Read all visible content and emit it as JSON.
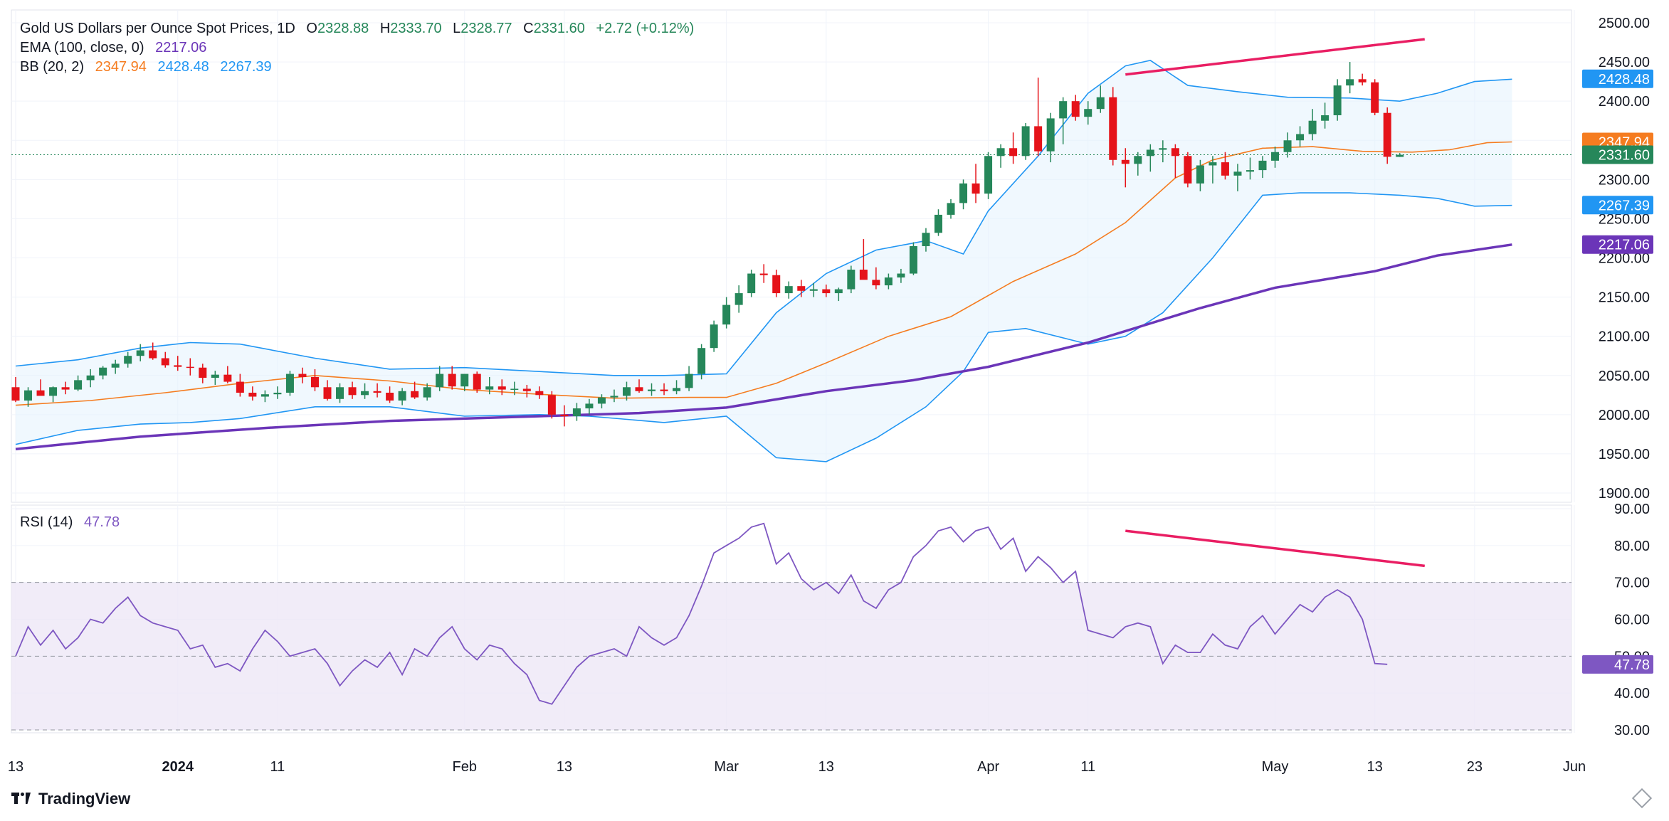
{
  "legend": {
    "title": "Gold US Dollars per Ounce Spot Prices, 1D",
    "open_label": "O",
    "open": "2328.88",
    "high_label": "H",
    "high": "2333.70",
    "low_label": "L",
    "low": "2328.77",
    "close_label": "C",
    "close": "2331.60",
    "change": "+2.72 (+0.12%)",
    "ema_label": "EMA (100, close, 0)",
    "ema_value": "2217.06",
    "bb_label": "BB (20, 2)",
    "bb_mid": "2347.94",
    "bb_upper": "2428.48",
    "bb_lower": "2267.39",
    "rsi_label": "RSI (14)",
    "rsi_value": "47.78"
  },
  "branding": {
    "logo_text": "TradingView"
  },
  "colors": {
    "up": "#26875a",
    "down": "#e5131a",
    "ema": "#6b35b8",
    "bb_basis": "#f57c20",
    "bb_band": "#2196f3",
    "bb_fill": "#e3f2fd",
    "rsi_line": "#7e57c2",
    "rsi_fill": "#ede7f6",
    "trendline": "#e91e63",
    "text": "#131722",
    "grid": "#f0f3fa"
  },
  "chart_data": [
    {
      "type": "candlestick",
      "title": "Gold US Dollars per Ounce Spot Prices, 1D",
      "ylim": [
        1900,
        2500
      ],
      "y_ticks": [
        1900,
        1950,
        2000,
        2050,
        2100,
        2150,
        2200,
        2250,
        2300,
        2350,
        2400,
        2450,
        2500
      ],
      "x_ticks": [
        {
          "label": "13",
          "i": 0
        },
        {
          "label": "2024",
          "i": 13,
          "bold": true
        },
        {
          "label": "11",
          "i": 21
        },
        {
          "label": "Feb",
          "i": 36
        },
        {
          "label": "13",
          "i": 44
        },
        {
          "label": "Mar",
          "i": 57
        },
        {
          "label": "13",
          "i": 65
        },
        {
          "label": "Apr",
          "i": 78
        },
        {
          "label": "11",
          "i": 86
        },
        {
          "label": "May",
          "i": 101
        },
        {
          "label": "13",
          "i": 109
        },
        {
          "label": "23",
          "i": 117
        },
        {
          "label": "Jun",
          "i": 125
        }
      ],
      "ohlc": [
        [
          2035,
          2048,
          2016,
          2018
        ],
        [
          2018,
          2035,
          2010,
          2031
        ],
        [
          2031,
          2045,
          2026,
          2024
        ],
        [
          2024,
          2036,
          2016,
          2035
        ],
        [
          2035,
          2042,
          2026,
          2032
        ],
        [
          2032,
          2050,
          2030,
          2044
        ],
        [
          2044,
          2058,
          2035,
          2050
        ],
        [
          2050,
          2062,
          2045,
          2060
        ],
        [
          2060,
          2070,
          2052,
          2065
        ],
        [
          2065,
          2080,
          2060,
          2075
        ],
        [
          2075,
          2090,
          2068,
          2082
        ],
        [
          2082,
          2092,
          2070,
          2072
        ],
        [
          2072,
          2080,
          2060,
          2063
        ],
        [
          2063,
          2075,
          2056,
          2061
        ],
        [
          2061,
          2072,
          2050,
          2060
        ],
        [
          2060,
          2065,
          2040,
          2047
        ],
        [
          2047,
          2056,
          2038,
          2051
        ],
        [
          2051,
          2062,
          2040,
          2042
        ],
        [
          2042,
          2052,
          2023,
          2028
        ],
        [
          2028,
          2036,
          2018,
          2023
        ],
        [
          2023,
          2031,
          2016,
          2026
        ],
        [
          2026,
          2036,
          2020,
          2028
        ],
        [
          2028,
          2056,
          2024,
          2052
        ],
        [
          2052,
          2060,
          2040,
          2048
        ],
        [
          2048,
          2058,
          2030,
          2035
        ],
        [
          2035,
          2044,
          2018,
          2020
        ],
        [
          2020,
          2040,
          2015,
          2035
        ],
        [
          2035,
          2042,
          2020,
          2025
        ],
        [
          2025,
          2040,
          2020,
          2030
        ],
        [
          2030,
          2040,
          2022,
          2028
        ],
        [
          2028,
          2036,
          2015,
          2018
        ],
        [
          2018,
          2034,
          2012,
          2030
        ],
        [
          2030,
          2042,
          2020,
          2022
        ],
        [
          2022,
          2040,
          2018,
          2035
        ],
        [
          2035,
          2062,
          2030,
          2052
        ],
        [
          2052,
          2062,
          2032,
          2036
        ],
        [
          2036,
          2052,
          2030,
          2052
        ],
        [
          2052,
          2055,
          2028,
          2032
        ],
        [
          2032,
          2048,
          2026,
          2036
        ],
        [
          2036,
          2045,
          2025,
          2032
        ],
        [
          2032,
          2042,
          2025,
          2033
        ],
        [
          2033,
          2038,
          2022,
          2030
        ],
        [
          2030,
          2036,
          2020,
          2025
        ],
        [
          2025,
          2030,
          1995,
          2000
        ],
        [
          2000,
          2012,
          1985,
          1998
        ],
        [
          1998,
          2015,
          1992,
          2008
        ],
        [
          2008,
          2020,
          2000,
          2014
        ],
        [
          2014,
          2026,
          2008,
          2022
        ],
        [
          2022,
          2032,
          2016,
          2024
        ],
        [
          2024,
          2042,
          2018,
          2035
        ],
        [
          2035,
          2045,
          2028,
          2030
        ],
        [
          2030,
          2040,
          2024,
          2032
        ],
        [
          2032,
          2040,
          2025,
          2030
        ],
        [
          2030,
          2044,
          2026,
          2034
        ],
        [
          2034,
          2062,
          2030,
          2052
        ],
        [
          2052,
          2090,
          2045,
          2085
        ],
        [
          2085,
          2120,
          2080,
          2115
        ],
        [
          2115,
          2150,
          2110,
          2140
        ],
        [
          2140,
          2165,
          2130,
          2155
        ],
        [
          2155,
          2185,
          2150,
          2180
        ],
        [
          2180,
          2192,
          2168,
          2178
        ],
        [
          2178,
          2185,
          2150,
          2155
        ],
        [
          2155,
          2170,
          2148,
          2164
        ],
        [
          2164,
          2172,
          2150,
          2158
        ],
        [
          2158,
          2168,
          2150,
          2160
        ],
        [
          2160,
          2166,
          2150,
          2155
        ],
        [
          2155,
          2162,
          2145,
          2160
        ],
        [
          2160,
          2190,
          2155,
          2185
        ],
        [
          2185,
          2224,
          2175,
          2172
        ],
        [
          2172,
          2188,
          2160,
          2165
        ],
        [
          2165,
          2180,
          2160,
          2175
        ],
        [
          2175,
          2186,
          2168,
          2180
        ],
        [
          2180,
          2220,
          2178,
          2215
        ],
        [
          2215,
          2238,
          2208,
          2232
        ],
        [
          2232,
          2262,
          2228,
          2255
        ],
        [
          2255,
          2275,
          2250,
          2270
        ],
        [
          2270,
          2300,
          2262,
          2295
        ],
        [
          2295,
          2320,
          2270,
          2282
        ],
        [
          2282,
          2335,
          2275,
          2330
        ],
        [
          2330,
          2345,
          2315,
          2340
        ],
        [
          2340,
          2360,
          2320,
          2330
        ],
        [
          2330,
          2372,
          2325,
          2368
        ],
        [
          2368,
          2430,
          2330,
          2336
        ],
        [
          2336,
          2385,
          2322,
          2378
        ],
        [
          2378,
          2405,
          2345,
          2400
        ],
        [
          2400,
          2408,
          2375,
          2380
        ],
        [
          2380,
          2400,
          2370,
          2390
        ],
        [
          2390,
          2420,
          2385,
          2405
        ],
        [
          2405,
          2418,
          2318,
          2325
        ],
        [
          2325,
          2340,
          2290,
          2320
        ],
        [
          2320,
          2335,
          2305,
          2330
        ],
        [
          2330,
          2345,
          2310,
          2338
        ],
        [
          2338,
          2350,
          2322,
          2340
        ],
        [
          2340,
          2345,
          2302,
          2330
        ],
        [
          2330,
          2335,
          2290,
          2295
        ],
        [
          2295,
          2325,
          2285,
          2318
        ],
        [
          2318,
          2330,
          2295,
          2322
        ],
        [
          2322,
          2335,
          2300,
          2305
        ],
        [
          2305,
          2320,
          2285,
          2310
        ],
        [
          2310,
          2328,
          2300,
          2312
        ],
        [
          2312,
          2330,
          2302,
          2324
        ],
        [
          2324,
          2342,
          2315,
          2335
        ],
        [
          2335,
          2360,
          2328,
          2350
        ],
        [
          2350,
          2368,
          2342,
          2358
        ],
        [
          2358,
          2390,
          2350,
          2375
        ],
        [
          2375,
          2398,
          2365,
          2382
        ],
        [
          2382,
          2428,
          2375,
          2420
        ],
        [
          2420,
          2450,
          2410,
          2428
        ],
        [
          2428,
          2435,
          2420,
          2424
        ],
        [
          2424,
          2428,
          2382,
          2385
        ],
        [
          2385,
          2392,
          2320,
          2329
        ],
        [
          2328.88,
          2333.7,
          2328.77,
          2331.6
        ]
      ],
      "ema": [
        [
          0,
          1956
        ],
        [
          10,
          1972
        ],
        [
          20,
          1983
        ],
        [
          30,
          1992
        ],
        [
          40,
          1997
        ],
        [
          50,
          2002
        ],
        [
          57,
          2009
        ],
        [
          65,
          2030
        ],
        [
          72,
          2044
        ],
        [
          78,
          2061
        ],
        [
          86,
          2092
        ],
        [
          95,
          2136
        ],
        [
          101,
          2162
        ],
        [
          109,
          2183
        ],
        [
          114,
          2203
        ],
        [
          120,
          2217
        ]
      ],
      "bb_upper": [
        [
          0,
          2062
        ],
        [
          5,
          2070
        ],
        [
          10,
          2085
        ],
        [
          14,
          2092
        ],
        [
          18,
          2090
        ],
        [
          24,
          2072
        ],
        [
          30,
          2058
        ],
        [
          36,
          2060
        ],
        [
          42,
          2055
        ],
        [
          48,
          2050
        ],
        [
          52,
          2050
        ],
        [
          57,
          2052
        ],
        [
          61,
          2130
        ],
        [
          65,
          2180
        ],
        [
          69,
          2210
        ],
        [
          73,
          2222
        ],
        [
          76,
          2205
        ],
        [
          78,
          2260
        ],
        [
          82,
          2330
        ],
        [
          86,
          2410
        ],
        [
          89,
          2445
        ],
        [
          91,
          2452
        ],
        [
          94,
          2420
        ],
        [
          98,
          2412
        ],
        [
          102,
          2405
        ],
        [
          107,
          2404
        ],
        [
          111,
          2400
        ],
        [
          114,
          2410
        ],
        [
          117,
          2425
        ],
        [
          120,
          2428
        ]
      ],
      "bb_lower": [
        [
          0,
          1962
        ],
        [
          5,
          1980
        ],
        [
          10,
          1988
        ],
        [
          14,
          1990
        ],
        [
          18,
          1995
        ],
        [
          24,
          2010
        ],
        [
          30,
          2010
        ],
        [
          36,
          1998
        ],
        [
          42,
          2000
        ],
        [
          46,
          1998
        ],
        [
          52,
          1990
        ],
        [
          57,
          1998
        ],
        [
          61,
          1945
        ],
        [
          65,
          1940
        ],
        [
          69,
          1970
        ],
        [
          73,
          2010
        ],
        [
          76,
          2055
        ],
        [
          78,
          2105
        ],
        [
          81,
          2110
        ],
        [
          86,
          2090
        ],
        [
          89,
          2100
        ],
        [
          92,
          2130
        ],
        [
          96,
          2200
        ],
        [
          100,
          2280
        ],
        [
          103,
          2283
        ],
        [
          107,
          2283
        ],
        [
          111,
          2280
        ],
        [
          114,
          2276
        ],
        [
          117,
          2266
        ],
        [
          120,
          2267
        ]
      ],
      "bb_basis": [
        [
          0,
          2012
        ],
        [
          6,
          2018
        ],
        [
          12,
          2028
        ],
        [
          18,
          2040
        ],
        [
          24,
          2050
        ],
        [
          30,
          2043
        ],
        [
          36,
          2032
        ],
        [
          42,
          2026
        ],
        [
          48,
          2021
        ],
        [
          54,
          2022
        ],
        [
          57,
          2022
        ],
        [
          61,
          2040
        ],
        [
          65,
          2066
        ],
        [
          70,
          2100
        ],
        [
          75,
          2125
        ],
        [
          80,
          2170
        ],
        [
          85,
          2205
        ],
        [
          89,
          2245
        ],
        [
          93,
          2302
        ],
        [
          96,
          2325
        ],
        [
          100,
          2340
        ],
        [
          104,
          2342
        ],
        [
          108,
          2336
        ],
        [
          112,
          2335
        ],
        [
          115,
          2338
        ],
        [
          118,
          2347
        ],
        [
          120,
          2348
        ]
      ],
      "trendline": [
        [
          89,
          2434
        ],
        [
          113,
          2479
        ]
      ]
    },
    {
      "type": "line",
      "title": "RSI (14)",
      "ylim": [
        30,
        90
      ],
      "y_ticks": [
        30,
        40,
        50,
        60,
        70,
        80,
        90
      ],
      "bands": [
        30,
        50,
        70
      ],
      "values": [
        50,
        58,
        53,
        57,
        52,
        55,
        60,
        59,
        63,
        66,
        61,
        59,
        58,
        57,
        52,
        53,
        47,
        48,
        46,
        52,
        57,
        54,
        50,
        51,
        52,
        48,
        42,
        46,
        49,
        47,
        51,
        45,
        52,
        50,
        55,
        58,
        52,
        49,
        53,
        52,
        48,
        45,
        38,
        37,
        42,
        47,
        50,
        51,
        52,
        50,
        58,
        55,
        53,
        55,
        61,
        69,
        78,
        80,
        82,
        85,
        86,
        75,
        78,
        71,
        68,
        70,
        67,
        72,
        65,
        63,
        68,
        70,
        77,
        80,
        84,
        85,
        81,
        84,
        85,
        79,
        82,
        73,
        77,
        74,
        70,
        73,
        57,
        56,
        55,
        58,
        59,
        58,
        48,
        53,
        51,
        51,
        56,
        53,
        52,
        58,
        61,
        56,
        60,
        64,
        62,
        66,
        68,
        66,
        60,
        48,
        47.78
      ],
      "trendline": [
        [
          89,
          84
        ],
        [
          113,
          74.5
        ]
      ],
      "current": 47.78
    }
  ]
}
